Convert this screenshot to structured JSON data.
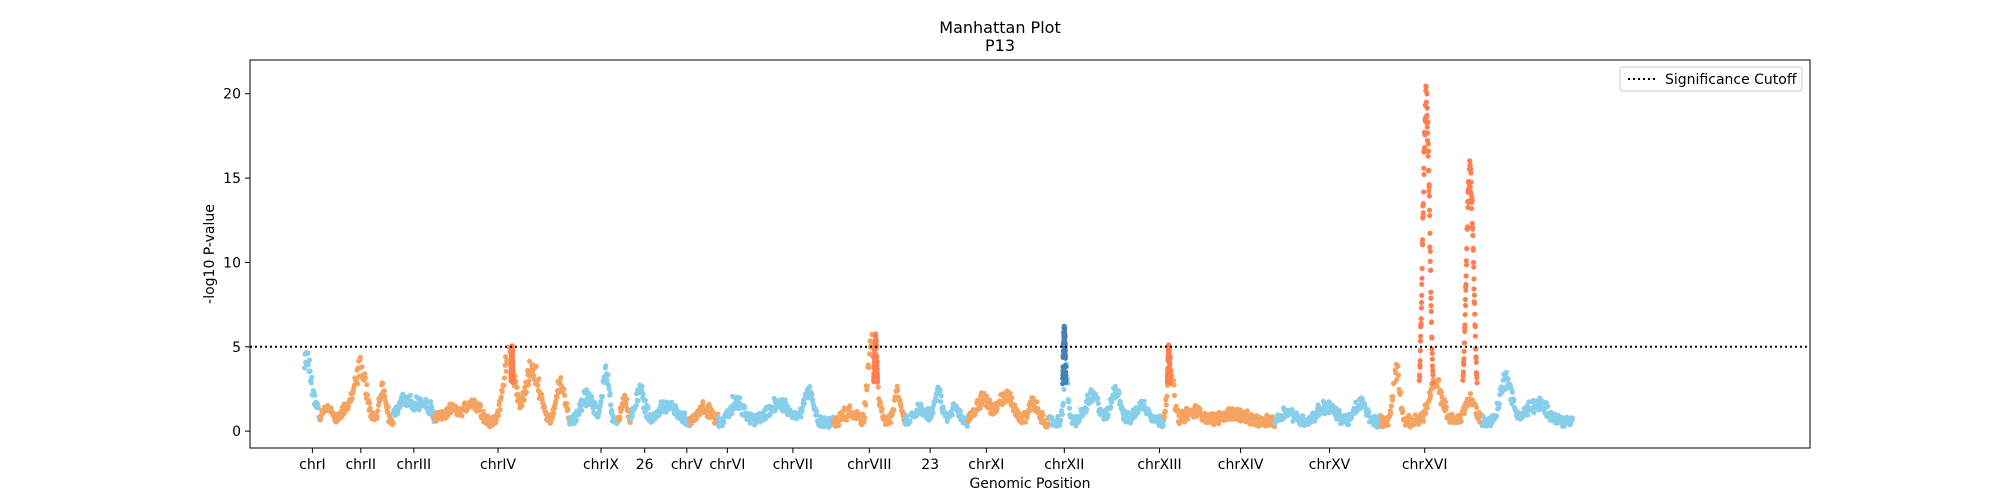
{
  "chart_data": {
    "type": "scatter",
    "title": "Manhattan Plot",
    "subtitle": "P13",
    "xlabel": "Genomic Position",
    "ylabel": "-log10 P-value",
    "ylim": [
      -1,
      22
    ],
    "yticks": [
      0,
      5,
      10,
      15,
      20
    ],
    "xlim": [
      0,
      1000
    ],
    "xtick_labels": [
      "chrI",
      "chrII",
      "chrIII",
      "chrIV",
      "chrIX",
      "26",
      "chrV",
      "chrVI",
      "chrVII",
      "chrVIII",
      "23",
      "chrXI",
      "chrXII",
      "chrXIII",
      "chrXIV",
      "chrXV",
      "chrXVI"
    ],
    "xtick_positions": [
      40,
      71,
      105,
      159,
      225,
      253,
      280,
      306,
      348,
      397,
      436,
      472,
      522,
      583,
      635,
      692,
      753
    ],
    "significance_cutoff": 5,
    "grid": false,
    "legend": {
      "position": "top-right",
      "entries": [
        "Significance Cutoff"
      ]
    },
    "colors": {
      "light_blue": "#87ceeb",
      "light_orange": "#f4a460",
      "sig_orange": "#ff7f50",
      "sig_blue": "#4682b4",
      "cutoff_line": "#000000"
    },
    "segments": [
      {
        "name": "chrI",
        "x0": 35,
        "x1": 45,
        "color": "light_blue",
        "peaks": [
          [
            36,
            3.2,
            3
          ],
          [
            40,
            1.5,
            4
          ]
        ]
      },
      {
        "name": "chrI-b",
        "x0": 45,
        "x1": 55,
        "color": "light_orange",
        "peaks": [
          [
            50,
            0.8,
            5
          ]
        ]
      },
      {
        "name": "chrII",
        "x0": 55,
        "x1": 92,
        "color": "light_orange",
        "peaks": [
          [
            64,
            0.8,
            8
          ],
          [
            71,
            2.8,
            5
          ],
          [
            85,
            2.2,
            3
          ]
        ]
      },
      {
        "name": "chrIII",
        "x0": 92,
        "x1": 118,
        "color": "light_blue",
        "peaks": [
          [
            100,
            1.2,
            8
          ],
          [
            112,
            1.0,
            6
          ]
        ]
      },
      {
        "name": "chrIII-b",
        "x0": 118,
        "x1": 153,
        "color": "light_orange",
        "peaks": [
          [
            130,
            0.7,
            10
          ],
          [
            143,
            1.0,
            6
          ]
        ]
      },
      {
        "name": "chrIV",
        "x0": 153,
        "x1": 205,
        "color": "light_orange",
        "peaks": [
          [
            166,
            3.8,
            5
          ],
          [
            181,
            3.2,
            6
          ],
          [
            199,
            2.2,
            4
          ]
        ]
      },
      {
        "name": "chrIX",
        "x0": 205,
        "x1": 236,
        "color": "light_blue",
        "peaks": [
          [
            216,
            1.5,
            6
          ],
          [
            228,
            3.0,
            3
          ]
        ]
      },
      {
        "name": "26",
        "x0": 236,
        "x1": 244,
        "color": "light_orange",
        "peaks": [
          [
            240,
            1.3,
            3
          ]
        ]
      },
      {
        "name": "chrV",
        "x0": 244,
        "x1": 282,
        "color": "light_blue",
        "peaks": [
          [
            250,
            1.8,
            4
          ],
          [
            268,
            1.0,
            8
          ]
        ]
      },
      {
        "name": "chrVI",
        "x0": 282,
        "x1": 300,
        "color": "light_orange",
        "peaks": [
          [
            291,
            0.8,
            6
          ]
        ]
      },
      {
        "name": "chrVII",
        "x0": 300,
        "x1": 374,
        "color": "light_blue",
        "peaks": [
          [
            312,
            1.2,
            6
          ],
          [
            340,
            1.0,
            10
          ],
          [
            358,
            1.8,
            4
          ]
        ]
      },
      {
        "name": "chrVIII",
        "x0": 374,
        "x1": 394,
        "color": "light_orange",
        "peaks": [
          [
            385,
            0.6,
            6
          ]
        ]
      },
      {
        "name": "chrVIII-peak",
        "x0": 394,
        "x1": 410,
        "color": "light_orange",
        "peaks": [
          [
            399,
            4.8,
            4
          ]
        ]
      },
      {
        "name": "chrVIII-c",
        "x0": 410,
        "x1": 420,
        "color": "light_orange",
        "peaks": [
          [
            415,
            1.8,
            3
          ]
        ]
      },
      {
        "name": "23",
        "x0": 420,
        "x1": 460,
        "color": "light_blue",
        "peaks": [
          [
            430,
            0.8,
            6
          ],
          [
            441,
            1.8,
            3
          ],
          [
            452,
            0.8,
            4
          ]
        ]
      },
      {
        "name": "chrXI",
        "x0": 460,
        "x1": 513,
        "color": "light_orange",
        "peaks": [
          [
            470,
            1.3,
            7
          ],
          [
            485,
            1.5,
            6
          ],
          [
            502,
            1.2,
            4
          ]
        ]
      },
      {
        "name": "chrXII-a",
        "x0": 513,
        "x1": 527,
        "color": "light_blue",
        "peaks": [
          [
            523,
            3.0,
            2
          ]
        ]
      },
      {
        "name": "chrXII",
        "x0": 527,
        "x1": 586,
        "color": "light_blue",
        "peaks": [
          [
            540,
            1.5,
            6
          ],
          [
            555,
            2.0,
            4
          ],
          [
            572,
            1.0,
            6
          ]
        ]
      },
      {
        "name": "chrXIII",
        "x0": 586,
        "x1": 657,
        "color": "light_orange",
        "peaks": [
          [
            590,
            3.2,
            3
          ],
          [
            605,
            0.6,
            8
          ],
          [
            630,
            0.5,
            10
          ]
        ]
      },
      {
        "name": "chrXIV",
        "x0": 657,
        "x1": 725,
        "color": "light_blue",
        "peaks": [
          [
            665,
            0.6,
            6
          ],
          [
            690,
            0.9,
            8
          ],
          [
            712,
            1.1,
            5
          ]
        ]
      },
      {
        "name": "chrXV-a",
        "x0": 725,
        "x1": 740,
        "color": "light_orange",
        "peaks": [
          [
            735,
            3.0,
            3
          ]
        ]
      },
      {
        "name": "chrXV",
        "x0": 740,
        "x1": 790,
        "color": "light_orange",
        "peaks": [
          [
            760,
            2.2,
            6
          ],
          [
            782,
            1.3,
            5
          ]
        ]
      },
      {
        "name": "chrXVI",
        "x0": 790,
        "x1": 848,
        "color": "light_blue",
        "peaks": [
          [
            805,
            2.5,
            5
          ],
          [
            825,
            1.0,
            10
          ]
        ]
      }
    ],
    "significant_peaks": [
      {
        "name": "chrIV-sig",
        "center": 168,
        "height": 5.1,
        "width": 1.0,
        "color": "sig_orange"
      },
      {
        "name": "chrVIII-sig",
        "center": 401,
        "height": 5.8,
        "width": 1.5,
        "color": "sig_orange"
      },
      {
        "name": "chrXII-sig",
        "center": 522,
        "height": 6.3,
        "width": 1.2,
        "color": "sig_blue"
      },
      {
        "name": "chrXIII-sig",
        "center": 589,
        "height": 5.2,
        "width": 1.2,
        "color": "sig_orange"
      },
      {
        "name": "chrXV-sig-1",
        "center": 754,
        "height": 20.8,
        "width": 3.2,
        "color": "sig_orange"
      },
      {
        "name": "chrXV-sig-2",
        "center": 782,
        "height": 16.1,
        "width": 3.5,
        "color": "sig_orange"
      }
    ]
  }
}
